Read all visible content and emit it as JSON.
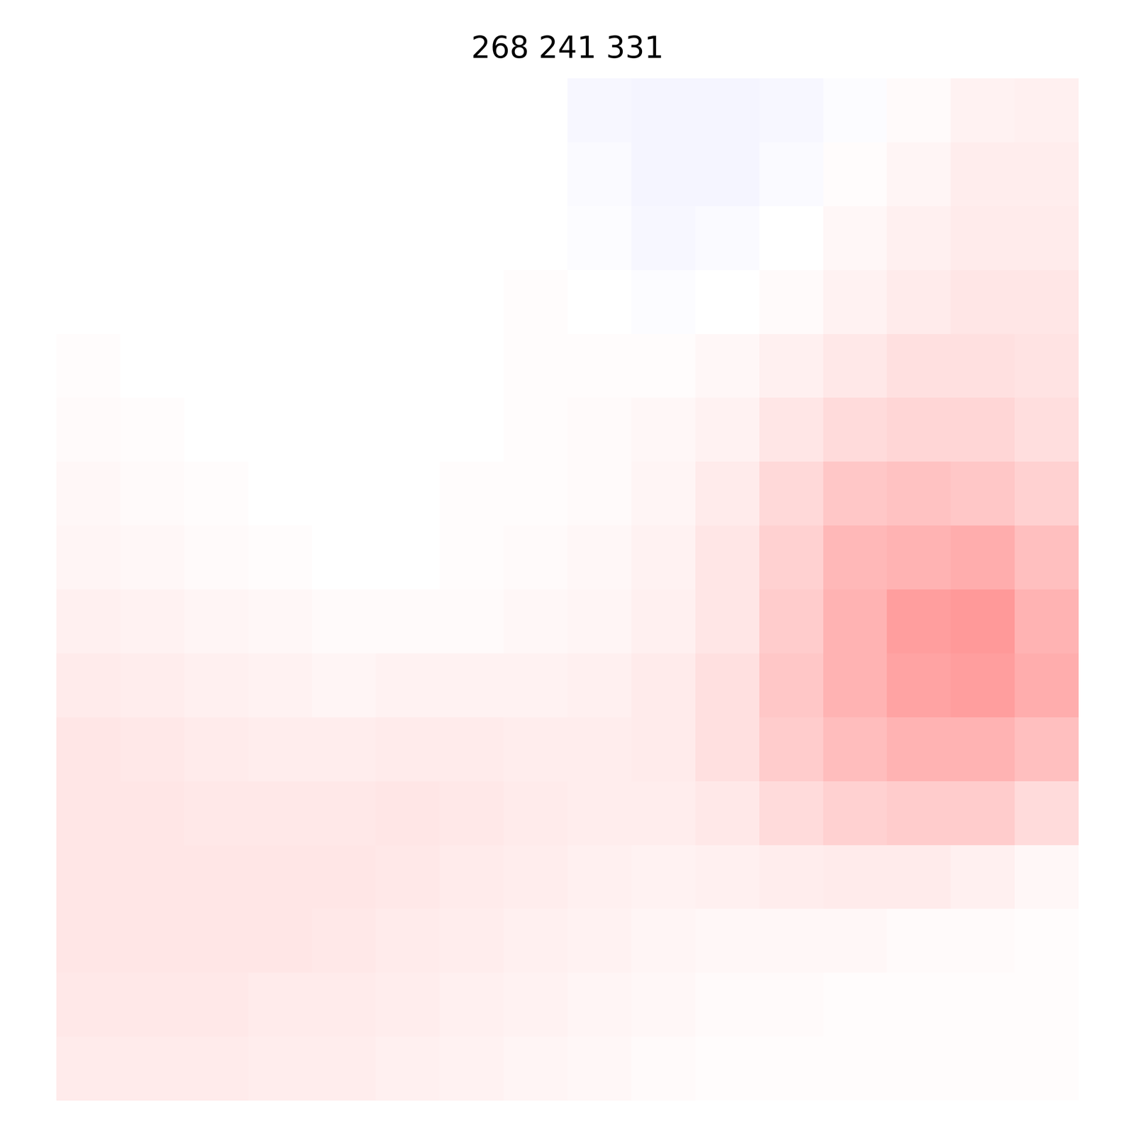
{
  "chart_data": {
    "type": "heatmap",
    "title": "268 241 331",
    "zlim": [
      -1,
      1
    ],
    "tick_labels": false,
    "values": [
      [
        0,
        0,
        0,
        0,
        0,
        0,
        0,
        0,
        -0.03,
        -0.04,
        -0.04,
        -0.03,
        -0.01,
        0.02,
        0.05,
        0.06
      ],
      [
        0,
        0,
        0,
        0,
        0,
        0,
        0,
        0,
        -0.02,
        -0.04,
        -0.04,
        -0.02,
        0.01,
        0.04,
        0.07,
        0.07
      ],
      [
        0,
        0,
        0,
        0,
        0,
        0,
        0,
        0,
        -0.01,
        -0.03,
        -0.02,
        0,
        0.03,
        0.06,
        0.08,
        0.08
      ],
      [
        0,
        0,
        0,
        0,
        0,
        0,
        0,
        0.01,
        0,
        -0.01,
        0,
        0.02,
        0.05,
        0.08,
        0.1,
        0.1
      ],
      [
        0.01,
        0,
        0,
        0,
        0,
        0,
        0,
        0.01,
        0.01,
        0.01,
        0.03,
        0.06,
        0.09,
        0.12,
        0.12,
        0.11
      ],
      [
        0.02,
        0.01,
        0,
        0,
        0,
        0,
        0,
        0.01,
        0.02,
        0.03,
        0.05,
        0.1,
        0.14,
        0.16,
        0.16,
        0.13
      ],
      [
        0.03,
        0.02,
        0.01,
        0,
        0,
        0,
        0.01,
        0.01,
        0.02,
        0.04,
        0.08,
        0.15,
        0.22,
        0.24,
        0.22,
        0.18
      ],
      [
        0.04,
        0.03,
        0.02,
        0.01,
        0,
        0,
        0.01,
        0.02,
        0.03,
        0.05,
        0.1,
        0.18,
        0.28,
        0.3,
        0.32,
        0.25
      ],
      [
        0.06,
        0.05,
        0.04,
        0.03,
        0.02,
        0.02,
        0.02,
        0.03,
        0.04,
        0.06,
        0.1,
        0.2,
        0.3,
        0.38,
        0.4,
        0.3
      ],
      [
        0.08,
        0.07,
        0.06,
        0.05,
        0.04,
        0.05,
        0.05,
        0.05,
        0.06,
        0.08,
        0.12,
        0.22,
        0.3,
        0.36,
        0.38,
        0.32
      ],
      [
        0.1,
        0.09,
        0.08,
        0.07,
        0.07,
        0.08,
        0.08,
        0.07,
        0.07,
        0.08,
        0.12,
        0.2,
        0.26,
        0.3,
        0.3,
        0.25
      ],
      [
        0.1,
        0.1,
        0.09,
        0.09,
        0.09,
        0.1,
        0.09,
        0.08,
        0.07,
        0.07,
        0.09,
        0.14,
        0.18,
        0.2,
        0.2,
        0.14
      ],
      [
        0.1,
        0.1,
        0.1,
        0.1,
        0.1,
        0.09,
        0.08,
        0.07,
        0.06,
        0.05,
        0.06,
        0.07,
        0.08,
        0.08,
        0.06,
        0.03
      ],
      [
        0.1,
        0.1,
        0.1,
        0.1,
        0.09,
        0.08,
        0.07,
        0.06,
        0.05,
        0.04,
        0.03,
        0.03,
        0.03,
        0.02,
        0.02,
        0.01
      ],
      [
        0.09,
        0.09,
        0.09,
        0.08,
        0.08,
        0.07,
        0.06,
        0.05,
        0.04,
        0.03,
        0.02,
        0.02,
        0.01,
        0.01,
        0.01,
        0.01
      ],
      [
        0.08,
        0.08,
        0.08,
        0.07,
        0.07,
        0.06,
        0.05,
        0.04,
        0.03,
        0.02,
        0.01,
        0.01,
        0.01,
        0.01,
        0.01,
        0.01
      ]
    ]
  }
}
